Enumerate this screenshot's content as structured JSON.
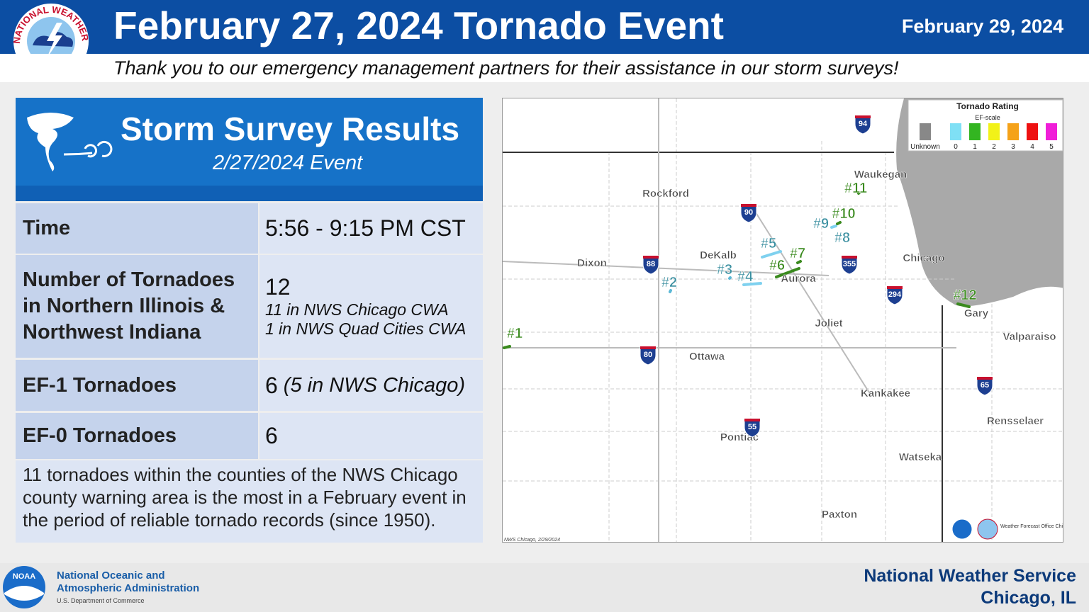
{
  "header": {
    "title": "February 27, 2024 Tornado Event",
    "date": "February 29, 2024",
    "subtitle": "Thank you to our emergency management partners for their assistance in our storm surveys!",
    "logo_text": "NATIONAL WEATHER SERVICE"
  },
  "panel": {
    "title": "Storm Survey Results",
    "subtitle": "2/27/2024 Event",
    "rows": [
      {
        "label": "Time",
        "value": "5:56 - 9:15 PM CST"
      },
      {
        "label": "Number of Tornadoes in Northern Illinois & Northwest Indiana",
        "value": "12",
        "details": [
          "11 in NWS Chicago CWA",
          "1 in NWS Quad Cities CWA"
        ]
      },
      {
        "label": "EF-1 Tornadoes",
        "value": "6",
        "detail": "(5 in NWS Chicago)"
      },
      {
        "label": "EF-0 Tornadoes",
        "value": "6"
      }
    ],
    "note": "11 tornadoes within the counties of the NWS Chicago county warning area is the most in a February event in the period of reliable tornado records (since 1950)."
  },
  "map": {
    "cities": [
      "Rockford",
      "Dixon",
      "DeKalb",
      "Aurora",
      "Waukegan",
      "Chicago",
      "Joliet",
      "Gary",
      "Valparaiso",
      "Ottawa",
      "Kankakee",
      "Rensselaer",
      "Pontiac",
      "Watseka",
      "Paxton"
    ],
    "tornadoes": [
      "#1",
      "#2",
      "#3",
      "#4",
      "#5",
      "#6",
      "#7",
      "#8",
      "#9",
      "#10",
      "#11",
      "#12"
    ],
    "interstates": [
      "94",
      "90",
      "88",
      "355",
      "294",
      "80",
      "65",
      "55"
    ],
    "legend": {
      "title": "Tornado Rating",
      "subtitle": "EF-scale",
      "items": [
        {
          "label": "Unknown",
          "color": "#888888"
        },
        {
          "label": "0",
          "color": "#7fe0f5"
        },
        {
          "label": "1",
          "color": "#33b521"
        },
        {
          "label": "2",
          "color": "#f2f218"
        },
        {
          "label": "3",
          "color": "#f5a219"
        },
        {
          "label": "4",
          "color": "#ee1111"
        },
        {
          "label": "5",
          "color": "#f01ed8"
        }
      ]
    },
    "credit": "NWS Chicago, 2/29/2024",
    "office": "Weather Forecast Office Chicago, Illinois"
  },
  "footer": {
    "noaa_logo": "NOAA",
    "noaa_name": "National Oceanic and Atmospheric Administration",
    "noaa_dept": "U.S. Department of Commerce",
    "nws": "National Weather Service",
    "office": "Chicago, IL"
  }
}
